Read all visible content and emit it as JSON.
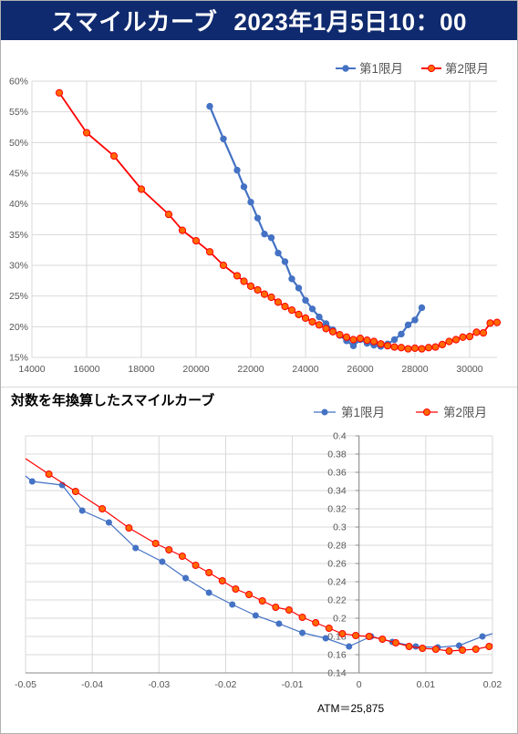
{
  "header": {
    "title": "スマイルカーブ",
    "datetime": "2023年1月5日10：00",
    "background": "#0f2a6e"
  },
  "colors": {
    "series1": "#4472c4",
    "series2": "#ff0000",
    "series2_fill": "#ff6a00"
  },
  "chart_data": [
    {
      "type": "line",
      "title": "",
      "xlabel": "",
      "ylabel": "",
      "xlim": [
        14000,
        31000
      ],
      "ylim": [
        0.15,
        0.6
      ],
      "x_ticks": [
        "14000",
        "16000",
        "18000",
        "20000",
        "22000",
        "24000",
        "26000",
        "28000",
        "30000"
      ],
      "y_ticks": [
        "15%",
        "20%",
        "25%",
        "30%",
        "35%",
        "40%",
        "45%",
        "50%",
        "55%",
        "60%"
      ],
      "grid": true,
      "legend": "top-right",
      "series": [
        {
          "name": "第1限月",
          "x": [
            20500,
            21000,
            21500,
            21750,
            22000,
            22250,
            22500,
            22750,
            23000,
            23250,
            23500,
            23750,
            24000,
            24250,
            24500,
            24750,
            25000,
            25250,
            25500,
            25750,
            26000,
            26250,
            26500,
            26750,
            27000,
            27250,
            27500,
            27750,
            28000,
            28250
          ],
          "y": [
            0.559,
            0.506,
            0.455,
            0.428,
            0.403,
            0.377,
            0.351,
            0.345,
            0.32,
            0.306,
            0.278,
            0.263,
            0.243,
            0.229,
            0.216,
            0.205,
            0.195,
            0.186,
            0.177,
            0.169,
            0.179,
            0.173,
            0.17,
            0.168,
            0.172,
            0.179,
            0.188,
            0.203,
            0.211,
            0.231
          ]
        },
        {
          "name": "第2限月",
          "x": [
            15000,
            16000,
            17000,
            18000,
            19000,
            19500,
            20000,
            20500,
            21000,
            21500,
            21750,
            22000,
            22250,
            22500,
            22750,
            23000,
            23250,
            23500,
            23750,
            24000,
            24250,
            24500,
            24750,
            25000,
            25250,
            25500,
            25750,
            26000,
            26250,
            26500,
            26750,
            27000,
            27250,
            27500,
            27750,
            28000,
            28250,
            28500,
            28750,
            29000,
            29250,
            29500,
            29750,
            30000,
            30250,
            30500,
            30750,
            31000
          ],
          "y": [
            0.581,
            0.516,
            0.478,
            0.424,
            0.383,
            0.357,
            0.34,
            0.322,
            0.3,
            0.283,
            0.274,
            0.266,
            0.26,
            0.253,
            0.248,
            0.24,
            0.233,
            0.227,
            0.22,
            0.214,
            0.208,
            0.203,
            0.197,
            0.192,
            0.187,
            0.183,
            0.179,
            0.181,
            0.178,
            0.176,
            0.172,
            0.169,
            0.167,
            0.166,
            0.164,
            0.165,
            0.164,
            0.166,
            0.167,
            0.171,
            0.176,
            0.179,
            0.183,
            0.184,
            0.191,
            0.19,
            0.206,
            0.207
          ]
        }
      ]
    },
    {
      "type": "line",
      "title": "対数を年換算したスマイルカーブ",
      "xlabel": "",
      "ylabel": "",
      "xlim": [
        -0.05,
        0.02
      ],
      "ylim": [
        0.14,
        0.4
      ],
      "x_ticks": [
        "-0.05",
        "-0.04",
        "-0.03",
        "-0.02",
        "-0.01",
        "0",
        "0.01",
        "0.02"
      ],
      "y_ticks": [
        "0.14",
        "0.16",
        "0.18",
        "0.2",
        "0.22",
        "0.24",
        "0.26",
        "0.28",
        "0.3",
        "0.32",
        "0.34",
        "0.36",
        "0.38",
        "0.4"
      ],
      "annotation": "ATM＝25,875",
      "grid": true,
      "legend": "top-right",
      "series": [
        {
          "name": "第1限月",
          "x": [
            -0.05,
            -0.049,
            -0.0445,
            -0.0415,
            -0.0375,
            -0.0335,
            -0.0295,
            -0.026,
            -0.0225,
            -0.019,
            -0.0155,
            -0.012,
            -0.0085,
            -0.005,
            -0.0015,
            0.0018,
            0.005,
            0.0085,
            0.0118,
            0.015,
            0.0185,
            0.02
          ],
          "y": [
            0.356,
            0.35,
            0.346,
            0.318,
            0.305,
            0.277,
            0.262,
            0.244,
            0.228,
            0.215,
            0.203,
            0.194,
            0.184,
            0.178,
            0.169,
            0.18,
            0.174,
            0.169,
            0.168,
            0.17,
            0.18,
            0.183
          ]
        },
        {
          "name": "第2限月",
          "x": [
            -0.05,
            -0.0465,
            -0.0425,
            -0.0385,
            -0.0345,
            -0.0305,
            -0.0285,
            -0.0265,
            -0.0245,
            -0.0225,
            -0.0205,
            -0.0185,
            -0.0165,
            -0.0145,
            -0.0125,
            -0.0105,
            -0.0085,
            -0.0065,
            -0.0045,
            -0.0025,
            -0.0005,
            0.0015,
            0.0035,
            0.0055,
            0.0075,
            0.0095,
            0.0115,
            0.0135,
            0.0155,
            0.0175,
            0.0195,
            0.02
          ],
          "y": [
            0.375,
            0.358,
            0.339,
            0.32,
            0.299,
            0.282,
            0.275,
            0.268,
            0.258,
            0.25,
            0.241,
            0.232,
            0.226,
            0.219,
            0.212,
            0.209,
            0.201,
            0.195,
            0.189,
            0.183,
            0.181,
            0.18,
            0.177,
            0.173,
            0.169,
            0.167,
            0.166,
            0.164,
            0.165,
            0.166,
            0.169,
            0.171
          ]
        }
      ]
    }
  ]
}
